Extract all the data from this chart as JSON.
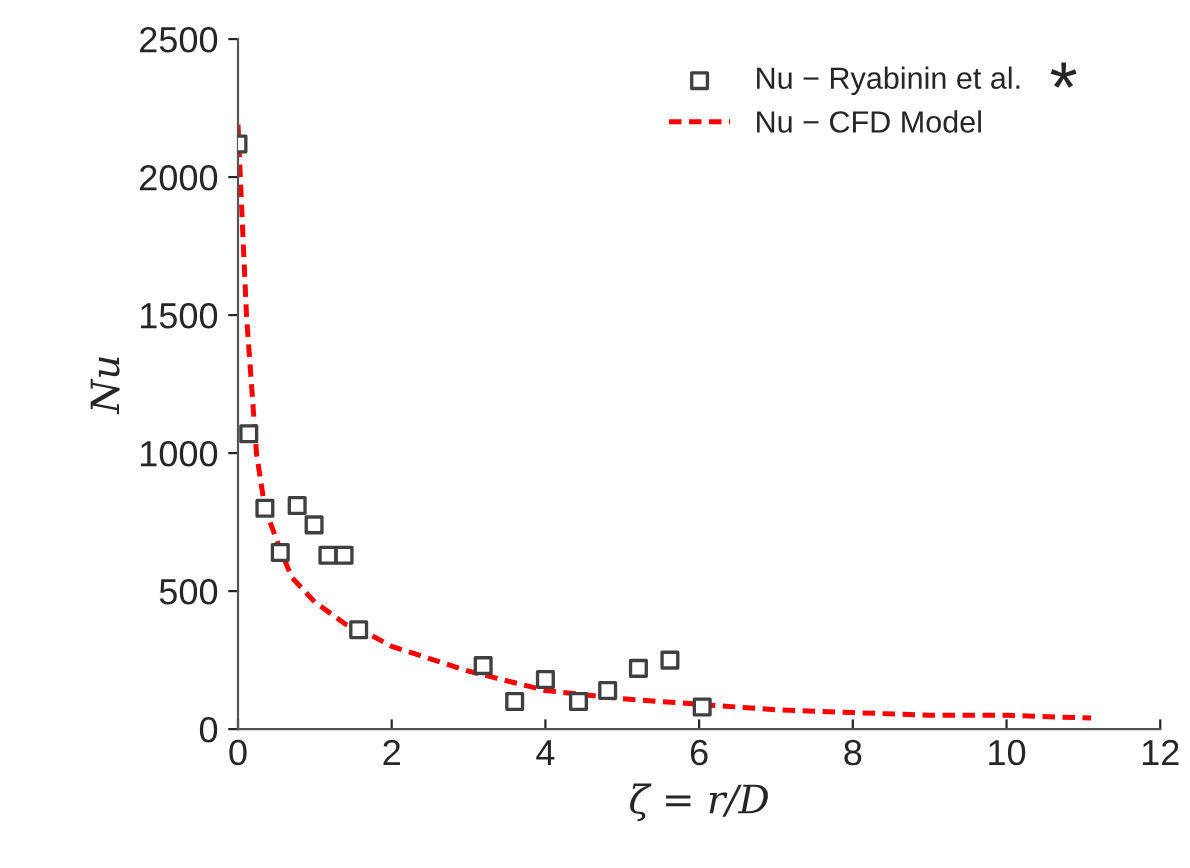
{
  "chart_data": {
    "type": "scatter",
    "xlabel": "ζ = r/D",
    "ylabel": "Nu",
    "series": [
      {
        "name": "Nu − Ryabinin et al.",
        "color": "#404040",
        "marker": "square",
        "x": [
          0,
          0.14,
          0.35,
          0.55,
          0.77,
          0.99,
          1.17,
          1.38,
          1.57,
          3.19,
          3.6,
          4.0,
          4.43,
          4.81,
          5.21,
          5.62,
          6.04
        ],
        "values": [
          2120,
          1070,
          800,
          640,
          810,
          740,
          630,
          630,
          360,
          230,
          100,
          180,
          100,
          140,
          220,
          250,
          80
        ]
      },
      {
        "name": "Nu − CFD Model",
        "type": "line",
        "color": "#ff0000",
        "line_style": "dashed",
        "marker": "none",
        "x": [
          0,
          0.11,
          0.24,
          0.35,
          0.55,
          0.7,
          1.0,
          1.4,
          1.6,
          2,
          3,
          4,
          5,
          6,
          7,
          8,
          9,
          10,
          11.1
        ],
        "values": [
          2190,
          1500,
          1000,
          800,
          650,
          550,
          460,
          380,
          360,
          300,
          210,
          140,
          110,
          90,
          70,
          60,
          50,
          50,
          40
        ]
      }
    ],
    "xlim": [
      0,
      12
    ],
    "xticks": [
      0,
      2,
      4,
      6,
      8,
      10,
      12
    ],
    "ylim": [
      0,
      2500
    ],
    "yticks": [
      0,
      500,
      1000,
      1500,
      2000,
      2500
    ],
    "grid": false,
    "legend": "top right",
    "annotations": [
      "*"
    ]
  }
}
